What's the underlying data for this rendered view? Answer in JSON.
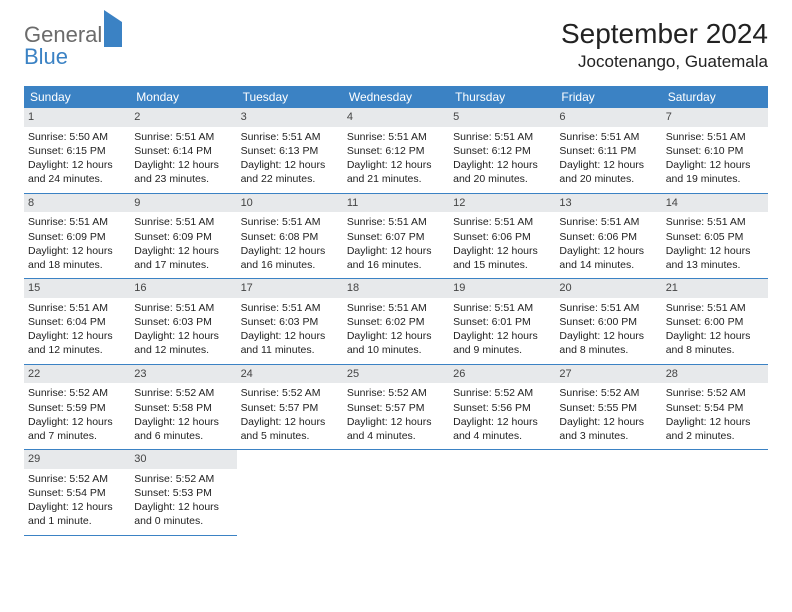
{
  "brand": {
    "word1": "General",
    "word2": "Blue"
  },
  "title": "September 2024",
  "location": "Jocotenango, Guatemala",
  "colors": {
    "header_bg": "#3b82c4",
    "header_text": "#ffffff",
    "daynum_bg": "#e7e9eb",
    "rule": "#3b82c4",
    "page_bg": "#ffffff",
    "text": "#222222",
    "logo_gray": "#6b6b6b",
    "logo_blue": "#3b82c4"
  },
  "typography": {
    "title_fontsize": 28,
    "location_fontsize": 17,
    "dow_fontsize": 12,
    "cell_fontsize": 10.5,
    "logo_fontsize": 22
  },
  "days_of_week": [
    "Sunday",
    "Monday",
    "Tuesday",
    "Wednesday",
    "Thursday",
    "Friday",
    "Saturday"
  ],
  "weeks": [
    [
      {
        "n": "1",
        "sunrise": "Sunrise: 5:50 AM",
        "sunset": "Sunset: 6:15 PM",
        "day1": "Daylight: 12 hours",
        "day2": "and 24 minutes."
      },
      {
        "n": "2",
        "sunrise": "Sunrise: 5:51 AM",
        "sunset": "Sunset: 6:14 PM",
        "day1": "Daylight: 12 hours",
        "day2": "and 23 minutes."
      },
      {
        "n": "3",
        "sunrise": "Sunrise: 5:51 AM",
        "sunset": "Sunset: 6:13 PM",
        "day1": "Daylight: 12 hours",
        "day2": "and 22 minutes."
      },
      {
        "n": "4",
        "sunrise": "Sunrise: 5:51 AM",
        "sunset": "Sunset: 6:12 PM",
        "day1": "Daylight: 12 hours",
        "day2": "and 21 minutes."
      },
      {
        "n": "5",
        "sunrise": "Sunrise: 5:51 AM",
        "sunset": "Sunset: 6:12 PM",
        "day1": "Daylight: 12 hours",
        "day2": "and 20 minutes."
      },
      {
        "n": "6",
        "sunrise": "Sunrise: 5:51 AM",
        "sunset": "Sunset: 6:11 PM",
        "day1": "Daylight: 12 hours",
        "day2": "and 20 minutes."
      },
      {
        "n": "7",
        "sunrise": "Sunrise: 5:51 AM",
        "sunset": "Sunset: 6:10 PM",
        "day1": "Daylight: 12 hours",
        "day2": "and 19 minutes."
      }
    ],
    [
      {
        "n": "8",
        "sunrise": "Sunrise: 5:51 AM",
        "sunset": "Sunset: 6:09 PM",
        "day1": "Daylight: 12 hours",
        "day2": "and 18 minutes."
      },
      {
        "n": "9",
        "sunrise": "Sunrise: 5:51 AM",
        "sunset": "Sunset: 6:09 PM",
        "day1": "Daylight: 12 hours",
        "day2": "and 17 minutes."
      },
      {
        "n": "10",
        "sunrise": "Sunrise: 5:51 AM",
        "sunset": "Sunset: 6:08 PM",
        "day1": "Daylight: 12 hours",
        "day2": "and 16 minutes."
      },
      {
        "n": "11",
        "sunrise": "Sunrise: 5:51 AM",
        "sunset": "Sunset: 6:07 PM",
        "day1": "Daylight: 12 hours",
        "day2": "and 16 minutes."
      },
      {
        "n": "12",
        "sunrise": "Sunrise: 5:51 AM",
        "sunset": "Sunset: 6:06 PM",
        "day1": "Daylight: 12 hours",
        "day2": "and 15 minutes."
      },
      {
        "n": "13",
        "sunrise": "Sunrise: 5:51 AM",
        "sunset": "Sunset: 6:06 PM",
        "day1": "Daylight: 12 hours",
        "day2": "and 14 minutes."
      },
      {
        "n": "14",
        "sunrise": "Sunrise: 5:51 AM",
        "sunset": "Sunset: 6:05 PM",
        "day1": "Daylight: 12 hours",
        "day2": "and 13 minutes."
      }
    ],
    [
      {
        "n": "15",
        "sunrise": "Sunrise: 5:51 AM",
        "sunset": "Sunset: 6:04 PM",
        "day1": "Daylight: 12 hours",
        "day2": "and 12 minutes."
      },
      {
        "n": "16",
        "sunrise": "Sunrise: 5:51 AM",
        "sunset": "Sunset: 6:03 PM",
        "day1": "Daylight: 12 hours",
        "day2": "and 12 minutes."
      },
      {
        "n": "17",
        "sunrise": "Sunrise: 5:51 AM",
        "sunset": "Sunset: 6:03 PM",
        "day1": "Daylight: 12 hours",
        "day2": "and 11 minutes."
      },
      {
        "n": "18",
        "sunrise": "Sunrise: 5:51 AM",
        "sunset": "Sunset: 6:02 PM",
        "day1": "Daylight: 12 hours",
        "day2": "and 10 minutes."
      },
      {
        "n": "19",
        "sunrise": "Sunrise: 5:51 AM",
        "sunset": "Sunset: 6:01 PM",
        "day1": "Daylight: 12 hours",
        "day2": "and 9 minutes."
      },
      {
        "n": "20",
        "sunrise": "Sunrise: 5:51 AM",
        "sunset": "Sunset: 6:00 PM",
        "day1": "Daylight: 12 hours",
        "day2": "and 8 minutes."
      },
      {
        "n": "21",
        "sunrise": "Sunrise: 5:51 AM",
        "sunset": "Sunset: 6:00 PM",
        "day1": "Daylight: 12 hours",
        "day2": "and 8 minutes."
      }
    ],
    [
      {
        "n": "22",
        "sunrise": "Sunrise: 5:52 AM",
        "sunset": "Sunset: 5:59 PM",
        "day1": "Daylight: 12 hours",
        "day2": "and 7 minutes."
      },
      {
        "n": "23",
        "sunrise": "Sunrise: 5:52 AM",
        "sunset": "Sunset: 5:58 PM",
        "day1": "Daylight: 12 hours",
        "day2": "and 6 minutes."
      },
      {
        "n": "24",
        "sunrise": "Sunrise: 5:52 AM",
        "sunset": "Sunset: 5:57 PM",
        "day1": "Daylight: 12 hours",
        "day2": "and 5 minutes."
      },
      {
        "n": "25",
        "sunrise": "Sunrise: 5:52 AM",
        "sunset": "Sunset: 5:57 PM",
        "day1": "Daylight: 12 hours",
        "day2": "and 4 minutes."
      },
      {
        "n": "26",
        "sunrise": "Sunrise: 5:52 AM",
        "sunset": "Sunset: 5:56 PM",
        "day1": "Daylight: 12 hours",
        "day2": "and 4 minutes."
      },
      {
        "n": "27",
        "sunrise": "Sunrise: 5:52 AM",
        "sunset": "Sunset: 5:55 PM",
        "day1": "Daylight: 12 hours",
        "day2": "and 3 minutes."
      },
      {
        "n": "28",
        "sunrise": "Sunrise: 5:52 AM",
        "sunset": "Sunset: 5:54 PM",
        "day1": "Daylight: 12 hours",
        "day2": "and 2 minutes."
      }
    ],
    [
      {
        "n": "29",
        "sunrise": "Sunrise: 5:52 AM",
        "sunset": "Sunset: 5:54 PM",
        "day1": "Daylight: 12 hours",
        "day2": "and 1 minute."
      },
      {
        "n": "30",
        "sunrise": "Sunrise: 5:52 AM",
        "sunset": "Sunset: 5:53 PM",
        "day1": "Daylight: 12 hours",
        "day2": "and 0 minutes."
      },
      null,
      null,
      null,
      null,
      null
    ]
  ]
}
